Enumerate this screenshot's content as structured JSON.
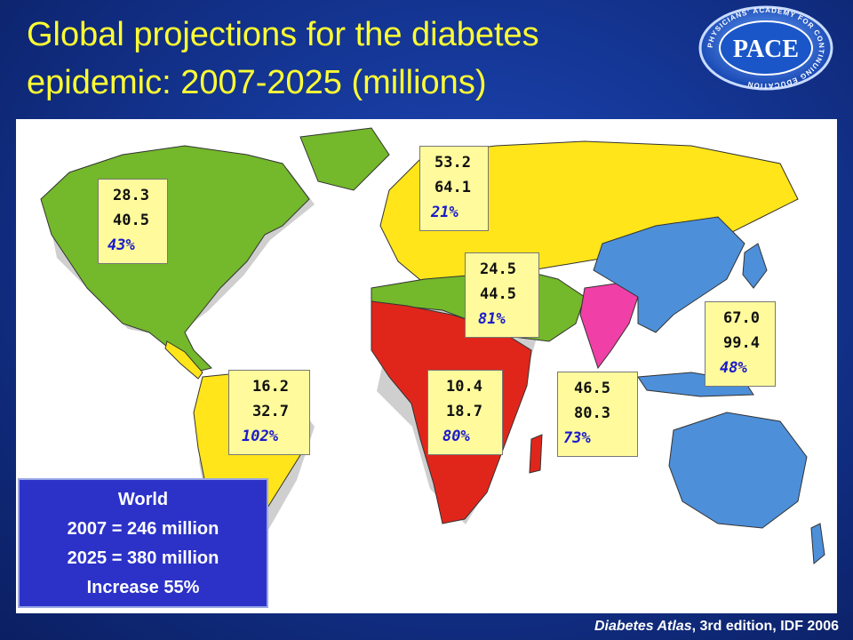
{
  "title": {
    "line1": "Global projections for the diabetes",
    "line2": "epidemic: 2007-2025 (millions)"
  },
  "logo": {
    "text": "PACE",
    "ring_text": "PHYSICIANS' ACADEMY FOR CONTINUING EDUCATION"
  },
  "regions": [
    {
      "id": "north-america",
      "color": "#74b82b",
      "v2007": "28.3",
      "v2025": "40.5",
      "increase": "43%"
    },
    {
      "id": "europe",
      "color": "#ffe51a",
      "v2007": "53.2",
      "v2025": "64.1",
      "increase": "21%"
    },
    {
      "id": "middle-east-north-africa",
      "color": "#74b82b",
      "v2007": "24.5",
      "v2025": "44.5",
      "increase": "81%"
    },
    {
      "id": "western-pacific",
      "color": "#4d8fd9",
      "v2007": "67.0",
      "v2025": "99.4",
      "increase": "48%"
    },
    {
      "id": "south-central-america",
      "color": "#ffe51a",
      "v2007": "16.2",
      "v2025": "32.7",
      "increase": "102%"
    },
    {
      "id": "africa",
      "color": "#e0261b",
      "v2007": "10.4",
      "v2025": "18.7",
      "increase": "80%"
    },
    {
      "id": "south-east-asia",
      "color": "#f03fa6",
      "v2007": "46.5",
      "v2025": "80.3",
      "increase": "73%"
    }
  ],
  "world": {
    "heading": "World",
    "line2007": "2007 = 246 million",
    "line2025": "2025 = 380 million",
    "increase": "Increase 55%"
  },
  "source": {
    "italic": "Diabetes Atlas",
    "rest": ", 3rd edition, IDF 2006"
  },
  "colors": {
    "title": "#ffff33",
    "box_fill": "#fffb9c",
    "percent_text": "#1a1acc",
    "world_box": "#2c32c8"
  }
}
